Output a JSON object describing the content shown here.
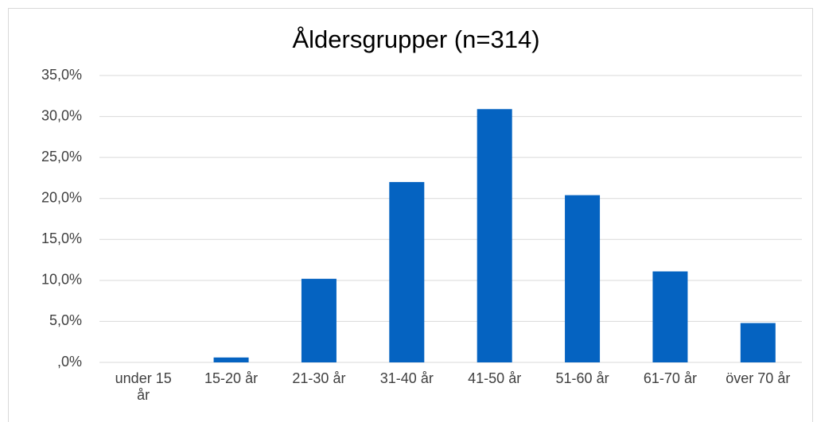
{
  "chart_data": {
    "type": "bar",
    "title": "Åldersgrupper (n=314)",
    "categories": [
      "under 15 år",
      "15-20 år",
      "21-30 år",
      "31-40 år",
      "41-50 år",
      "51-60 år",
      "61-70 år",
      "över 70 år"
    ],
    "values": [
      0,
      0.6,
      10.2,
      22.0,
      30.9,
      20.4,
      11.1,
      4.8
    ],
    "color": "#0563c1",
    "ylim": [
      0,
      35
    ],
    "yticks": [
      {
        "value": 0,
        "label": ",0%"
      },
      {
        "value": 5,
        "label": "5,0%"
      },
      {
        "value": 10,
        "label": "10,0%"
      },
      {
        "value": 15,
        "label": "15,0%"
      },
      {
        "value": 20,
        "label": "20,0%"
      },
      {
        "value": 25,
        "label": "25,0%"
      },
      {
        "value": 30,
        "label": "30,0%"
      },
      {
        "value": 35,
        "label": "35,0%"
      }
    ],
    "grid": true
  }
}
